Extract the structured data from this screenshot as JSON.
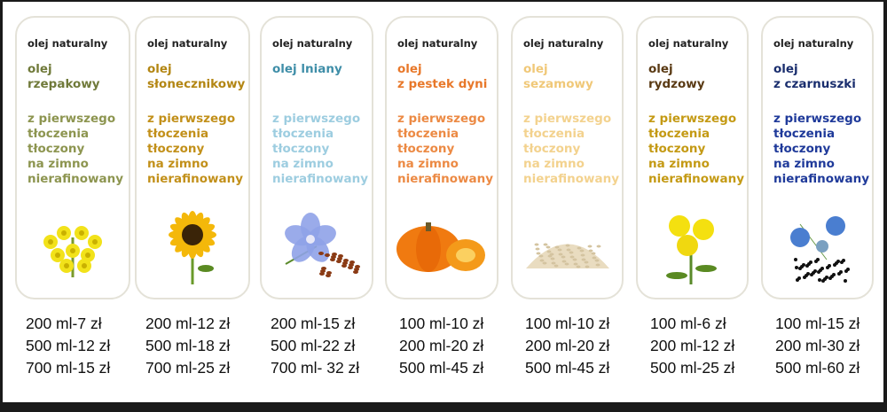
{
  "products": [
    {
      "label": "olej naturalny",
      "name": [
        "olej",
        "rzepakowy"
      ],
      "desc": [
        "z pierwszego",
        "tłoczenia",
        "tłoczony",
        "na zimno",
        "nierafinowany"
      ],
      "name_color": "#707a3a",
      "desc_color": "#8d9550",
      "icon": "rapeseed-flower",
      "prices": [
        "200 ml-7 zł",
        "500 ml-12 zł",
        "700 ml-15 zł"
      ]
    },
    {
      "label": "olej naturalny",
      "name": [
        "olej",
        "słonecznikowy"
      ],
      "desc": [
        "z pierwszego",
        "tłoczenia",
        "tłoczony",
        "na zimno",
        "nierafinowany"
      ],
      "name_color": "#b38613",
      "desc_color": "#c2901a",
      "icon": "sunflower",
      "prices": [
        "200 ml-12 zł",
        "500 ml-18 zł",
        "700 ml-25 zł"
      ]
    },
    {
      "label": "olej naturalny",
      "name": [
        "olej lniany",
        ""
      ],
      "desc": [
        "z pierwszego",
        "tłoczenia",
        "tłoczony",
        "na zimno",
        "nierafinowany"
      ],
      "name_color": "#3f8ea8",
      "desc_color": "#9dcde0",
      "icon": "flax-flower",
      "prices": [
        "200 ml-15 zł",
        "500 ml-22 zł",
        "700 ml- 32 zł"
      ]
    },
    {
      "label": "olej naturalny",
      "name": [
        "olej",
        "z pestek dyni"
      ],
      "desc": [
        "z pierwszego",
        "tłoczenia",
        "tłoczony",
        "na zimno",
        "nierafinowany"
      ],
      "name_color": "#e8782a",
      "desc_color": "#ec8a44",
      "icon": "pumpkin",
      "prices": [
        "100 ml-10 zł",
        "200 ml-20 zł",
        "500 ml-45 zł"
      ]
    },
    {
      "label": "olej naturalny",
      "name": [
        "olej",
        "sezamowy"
      ],
      "desc": [
        "z pierwszego",
        "tłoczenia",
        "tłoczony",
        "na zimno",
        "nierafinowany"
      ],
      "name_color": "#f0c878",
      "desc_color": "#f3d28e",
      "icon": "sesame-seeds",
      "prices": [
        "100 ml-10 zł",
        "200 ml-20 zł",
        "500 ml-45 zł"
      ]
    },
    {
      "label": "olej naturalny",
      "name": [
        "olej",
        "rydzowy"
      ],
      "desc": [
        "z pierwszego",
        "tłoczenia",
        "tłoczony",
        "na zimno",
        "nierafinowany"
      ],
      "name_color": "#5a3a14",
      "desc_color": "#c49a14",
      "icon": "camelina-flower",
      "prices": [
        "100 ml-6 zł",
        "200 ml-12 zł",
        "500 ml-25 zł"
      ]
    },
    {
      "label": "olej naturalny",
      "name": [
        "olej",
        "z czarnuszki"
      ],
      "desc": [
        "z pierwszego",
        "tłoczenia",
        "tłoczony",
        "na zimno",
        "nierafinowany"
      ],
      "name_color": "#1a2e6e",
      "desc_color": "#1f3a9a",
      "icon": "nigella-flower",
      "prices": [
        "100 ml-15 zł",
        "200 ml-30 zł",
        "500 ml-60 zł"
      ]
    }
  ]
}
